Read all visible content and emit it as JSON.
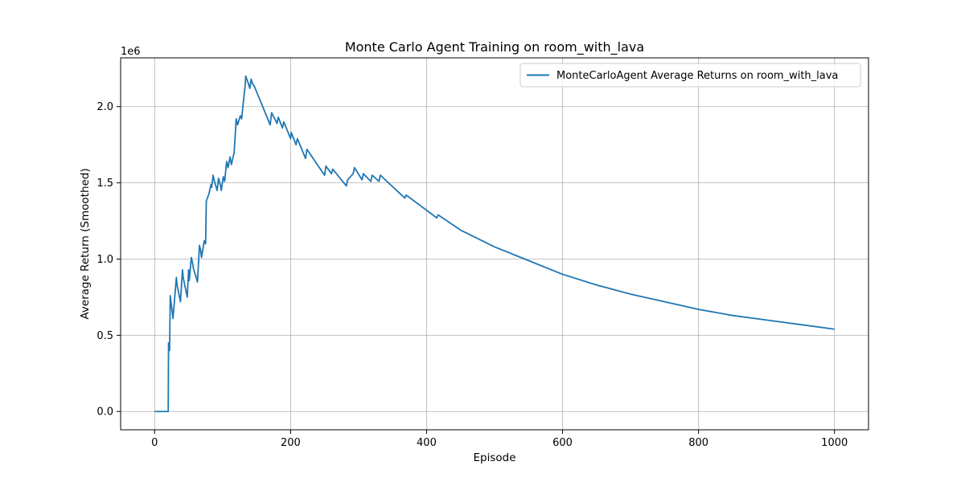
{
  "chart_data": {
    "type": "line",
    "title": "Monte Carlo Agent Training on room_with_lava",
    "xlabel": "Episode",
    "ylabel": "Average Return (Smoothed)",
    "y_offset_label": "1e6",
    "xlim": [
      -50,
      1050
    ],
    "ylim": [
      -120000,
      2320000
    ],
    "xticks": [
      0,
      200,
      400,
      600,
      800,
      1000
    ],
    "xtick_labels": [
      "0",
      "200",
      "400",
      "600",
      "800",
      "1000"
    ],
    "yticks": [
      0,
      500000,
      1000000,
      1500000,
      2000000
    ],
    "ytick_labels": [
      "0.0",
      "0.5",
      "1.0",
      "1.5",
      "2.0"
    ],
    "grid": true,
    "legend_position": "top-right",
    "colors": {
      "line": "#1f77b4",
      "grid": "#b0b0b0",
      "axes": "#000000"
    },
    "series": [
      {
        "name": "MonteCarloAgent Average Returns on room_with_lava",
        "x": [
          0,
          20,
          20.5,
          22,
          23,
          24,
          27,
          32,
          33,
          38,
          41,
          42,
          48,
          50,
          51,
          54,
          56,
          57,
          63,
          66,
          68,
          69,
          73,
          75,
          76,
          80,
          83,
          84,
          86,
          88,
          92,
          94,
          97,
          98,
          101,
          103,
          106,
          108,
          111,
          113,
          117,
          120,
          122,
          126,
          128,
          131,
          133,
          134,
          138,
          140,
          142,
          144,
          147,
          170,
          172,
          180,
          182,
          188,
          190,
          200,
          201,
          208,
          210,
          222,
          224,
          250,
          252,
          260,
          262,
          282,
          284,
          292,
          294,
          305,
          307,
          318,
          320,
          330,
          332,
          368,
          370,
          415,
          417,
          450,
          500,
          550,
          600,
          650,
          700,
          750,
          800,
          850,
          900,
          950,
          1000
        ],
        "y": [
          0,
          0,
          450000,
          400000,
          760000,
          720000,
          610000,
          880000,
          830000,
          720000,
          930000,
          880000,
          750000,
          930000,
          860000,
          1010000,
          970000,
          940000,
          850000,
          1090000,
          1050000,
          1010000,
          1120000,
          1100000,
          1380000,
          1430000,
          1490000,
          1470000,
          1550000,
          1510000,
          1450000,
          1530000,
          1480000,
          1450000,
          1540000,
          1510000,
          1640000,
          1600000,
          1670000,
          1620000,
          1700000,
          1920000,
          1880000,
          1940000,
          1920000,
          2050000,
          2130000,
          2200000,
          2150000,
          2120000,
          2180000,
          2150000,
          2130000,
          1880000,
          1960000,
          1890000,
          1930000,
          1860000,
          1900000,
          1790000,
          1830000,
          1750000,
          1790000,
          1660000,
          1720000,
          1550000,
          1610000,
          1560000,
          1590000,
          1480000,
          1520000,
          1560000,
          1600000,
          1520000,
          1560000,
          1510000,
          1550000,
          1510000,
          1550000,
          1400000,
          1420000,
          1270000,
          1290000,
          1190000,
          1080000,
          990000,
          900000,
          830000,
          770000,
          720000,
          670000,
          630000,
          600000,
          570000,
          540000
        ]
      }
    ]
  }
}
